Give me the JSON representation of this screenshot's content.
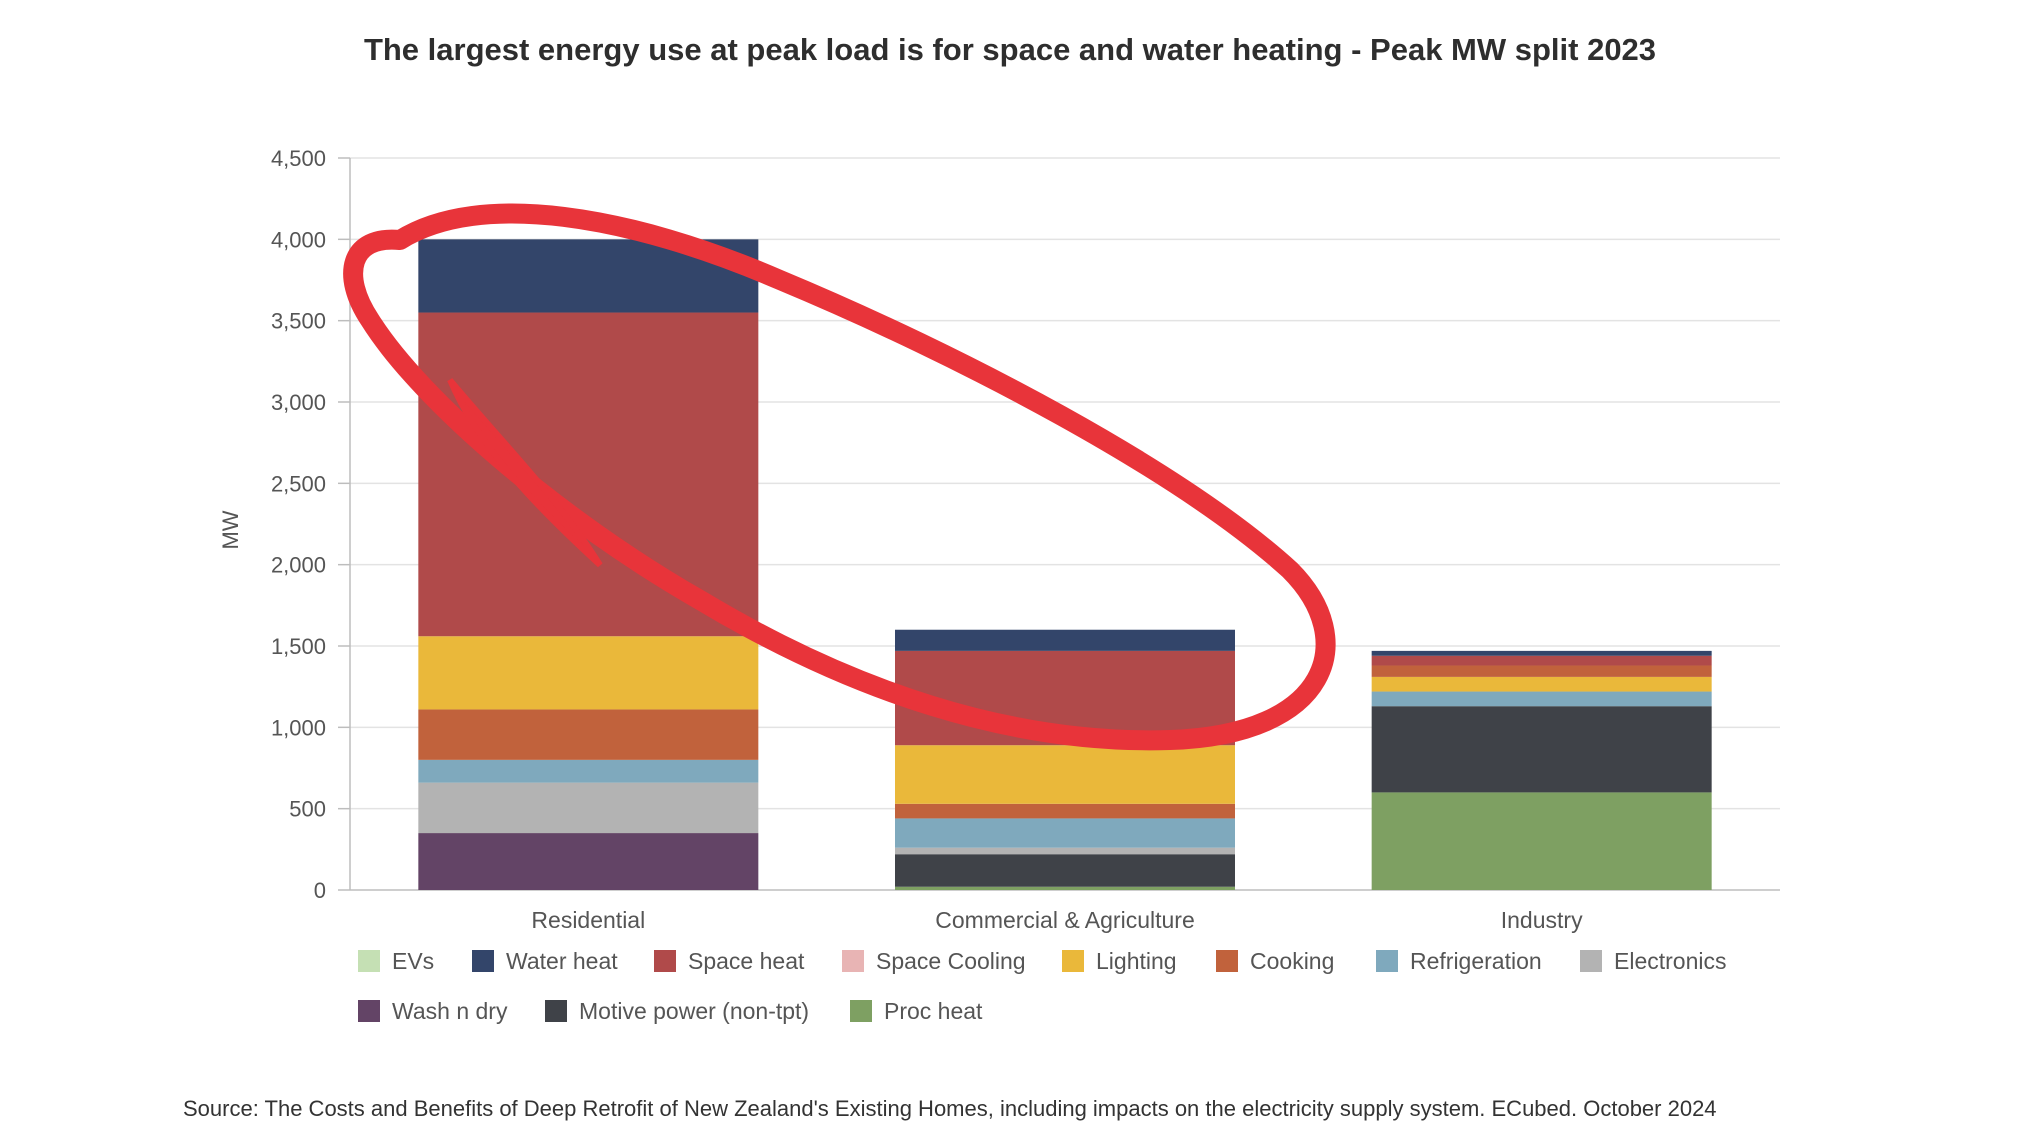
{
  "chart_data": {
    "type": "bar",
    "stacked": true,
    "title": "The largest energy use at peak load is for space and water heating - Peak MW split 2023",
    "ylabel": "MW",
    "xlabel": "",
    "ylim": [
      0,
      4500
    ],
    "yticks": [
      0,
      500,
      1000,
      1500,
      2000,
      2500,
      3000,
      3500,
      4000,
      4500
    ],
    "ytick_labels": [
      "0",
      "500",
      "1,000",
      "1,500",
      "2,000",
      "2,500",
      "3,000",
      "3,500",
      "4,000",
      "4,500"
    ],
    "grid": true,
    "legend_position": "bottom",
    "categories": [
      "Residential",
      "Commercial & Agriculture",
      "Industry"
    ],
    "series": [
      {
        "name": "EVs",
        "color": "#c5e0b4",
        "values": [
          0,
          0,
          0
        ]
      },
      {
        "name": "Wash n dry",
        "color": "#634466",
        "values": [
          350,
          0,
          0
        ]
      },
      {
        "name": "Electronics",
        "color": "#b3b3b3",
        "values": [
          310,
          40,
          0
        ]
      },
      {
        "name": "Refrigeration",
        "color": "#7fa9bd",
        "values": [
          140,
          180,
          90
        ]
      },
      {
        "name": "Cooking",
        "color": "#c1623c",
        "values": [
          310,
          90,
          70
        ]
      },
      {
        "name": "Lighting",
        "color": "#eab83a",
        "values": [
          450,
          360,
          90
        ]
      },
      {
        "name": "Space Cooling",
        "color": "#e8b4b4",
        "values": [
          0,
          0,
          0
        ]
      },
      {
        "name": "Space heat",
        "color": "#b04a4a",
        "values": [
          1990,
          580,
          60
        ]
      },
      {
        "name": "Water heat",
        "color": "#33456a",
        "values": [
          450,
          130,
          30
        ]
      },
      {
        "name": "Motive power (non-tpt)",
        "color": "#3f4248",
        "values": [
          0,
          200,
          530
        ]
      },
      {
        "name": "Proc heat",
        "color": "#7ea062",
        "values": [
          0,
          20,
          600
        ]
      }
    ],
    "legend_order": [
      "EVs",
      "Water heat",
      "Space heat",
      "Space Cooling",
      "Lighting",
      "Cooking",
      "Refrigeration",
      "Electronics",
      "Wash n dry",
      "Motive power (non-tpt)",
      "Proc heat"
    ],
    "stack_order_by_category": [
      [
        "Wash n dry",
        "Electronics",
        "Refrigeration",
        "Cooking",
        "Lighting",
        "Space heat",
        "Water heat"
      ],
      [
        "Proc heat",
        "Motive power (non-tpt)",
        "Electronics",
        "Refrigeration",
        "Cooking",
        "Lighting",
        "Space heat",
        "Water heat"
      ],
      [
        "Proc heat",
        "Motive power (non-tpt)",
        "Refrigeration",
        "Lighting",
        "Cooking",
        "Space heat",
        "Water heat"
      ]
    ],
    "annotation": {
      "type": "red-ellipse-highlight",
      "color": "#e8343a",
      "covers": "space and water heating"
    }
  },
  "source": "Source: The Costs and Benefits of Deep Retrofit of New Zealand's Existing Homes, including impacts on the electricity supply system. ECubed. October 2024"
}
